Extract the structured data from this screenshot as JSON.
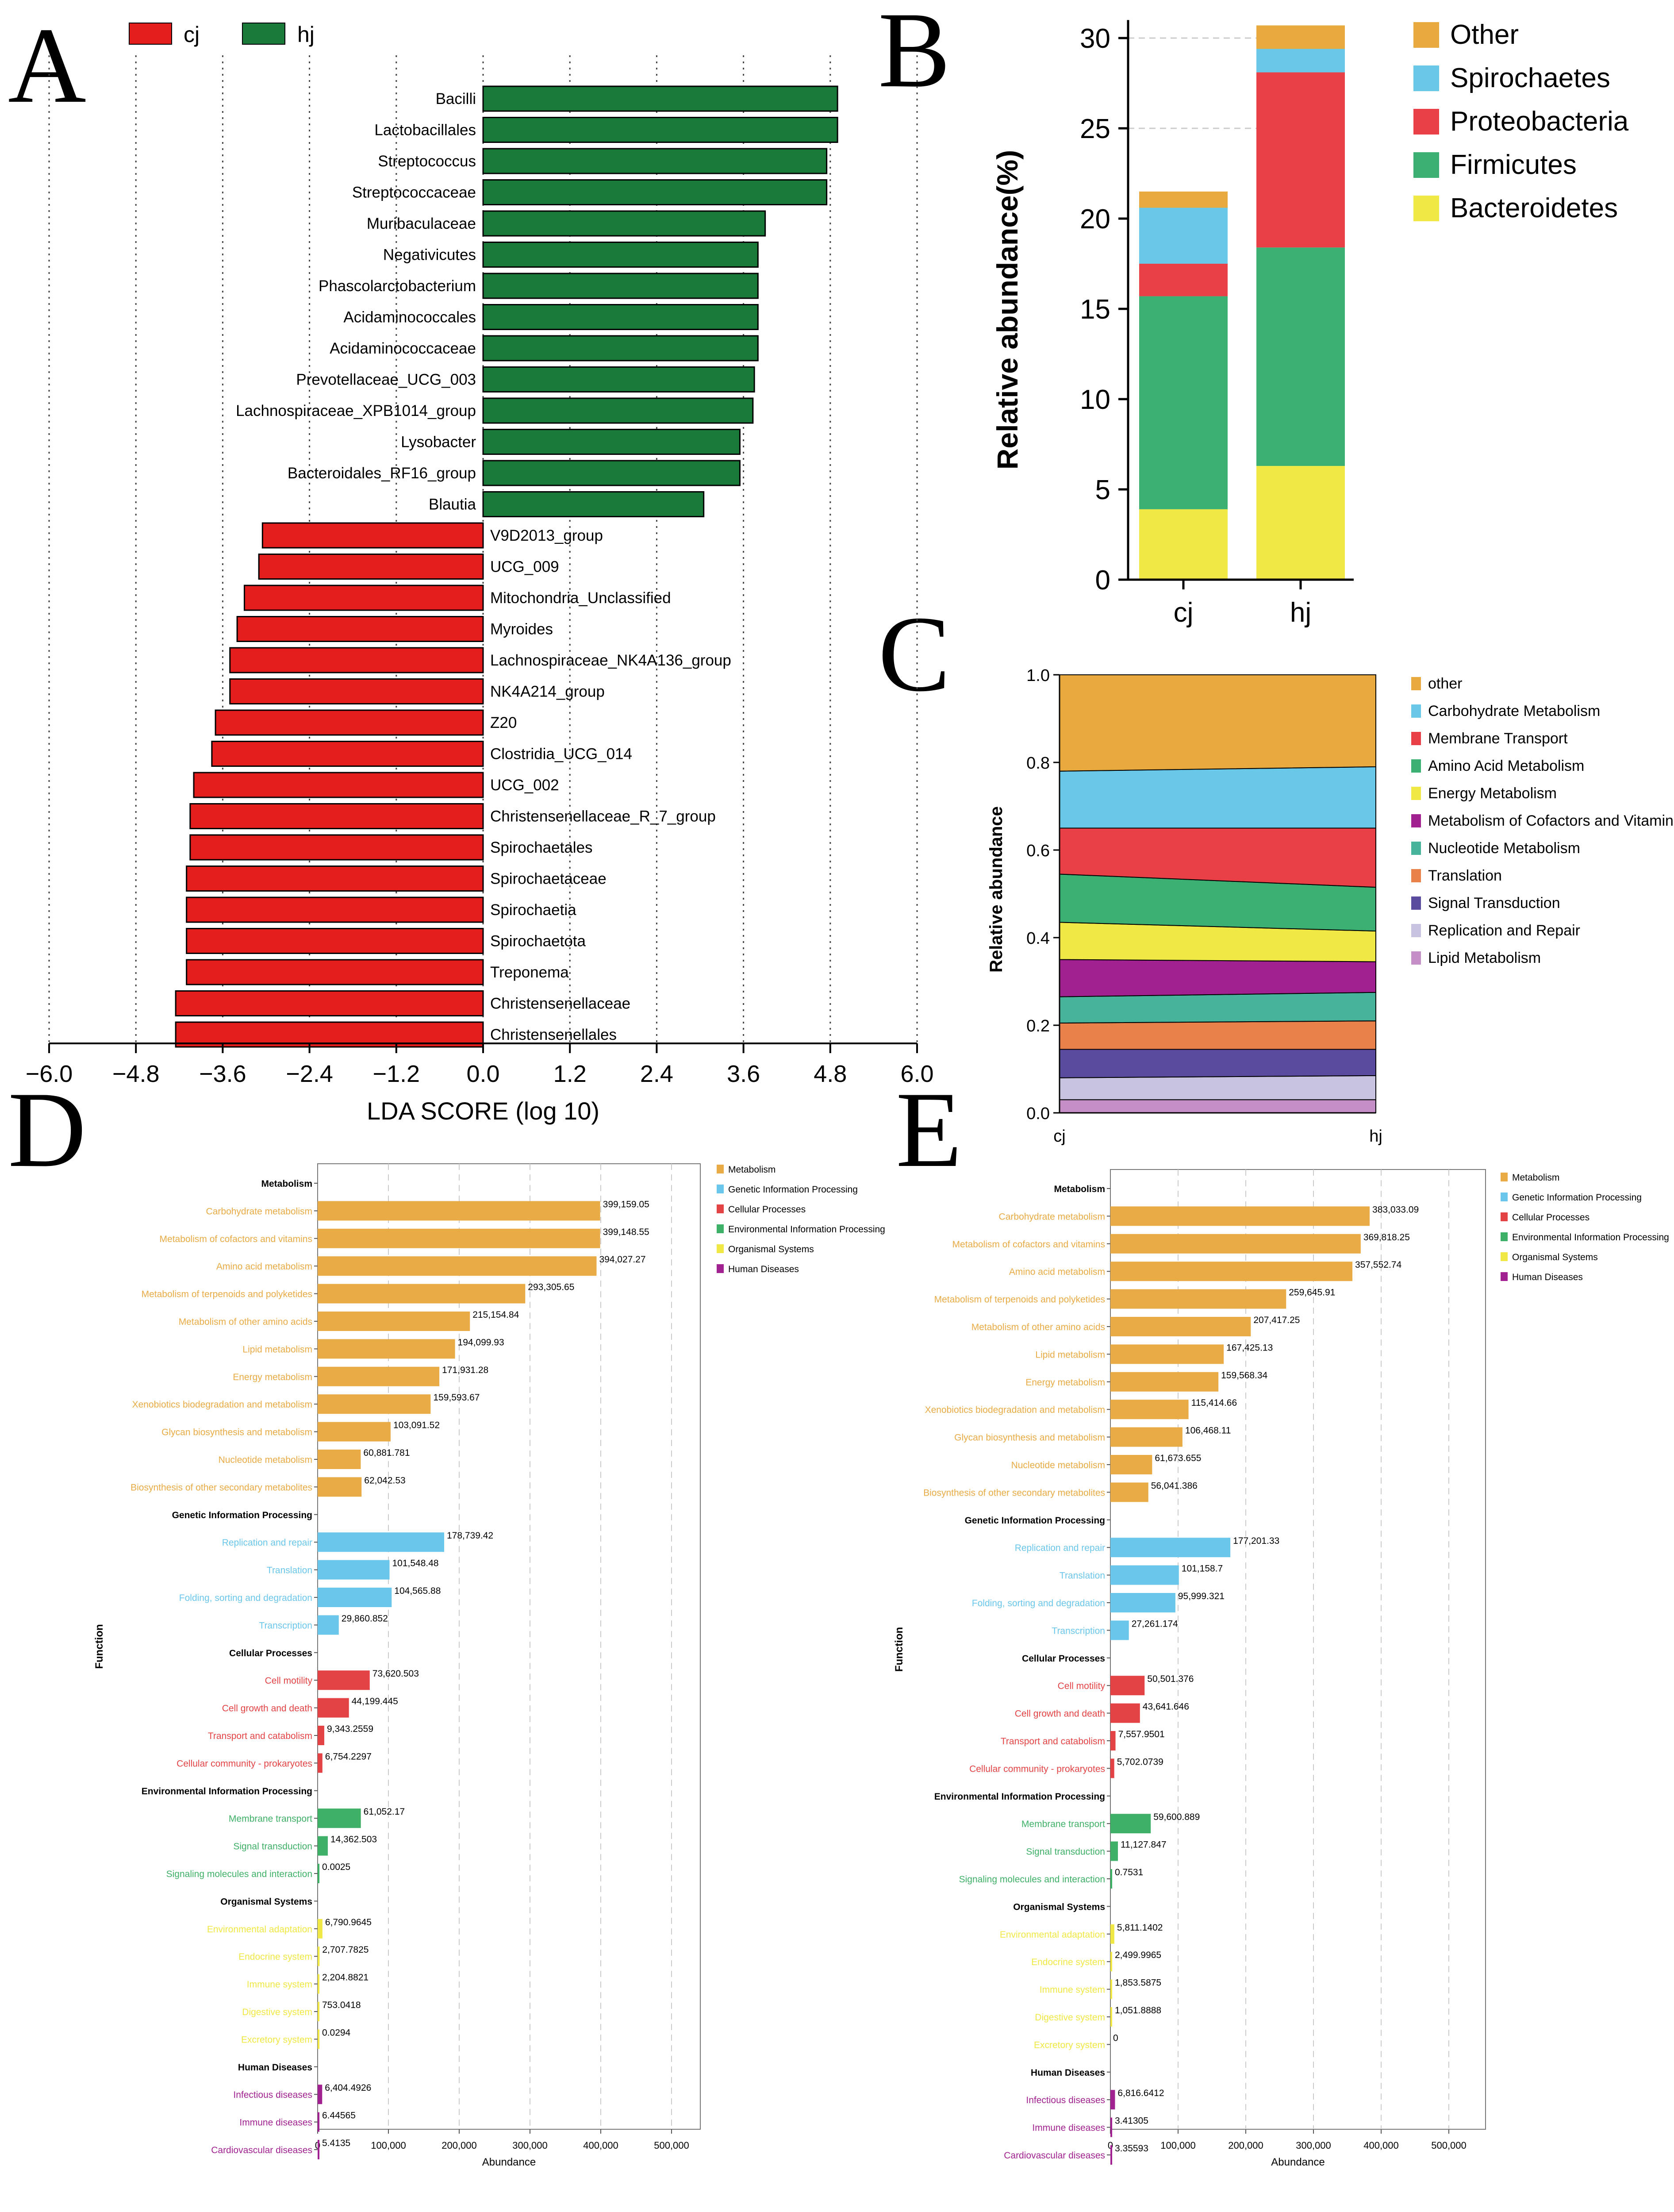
{
  "panel_letters": [
    "A",
    "B",
    "C",
    "D",
    "E"
  ],
  "colors": {
    "cj": "#e41d1d",
    "hj": "#1a7a3a",
    "Other": "#e8a93f",
    "Spirochaetes": "#69c8e8",
    "Proteobacteria": "#e84046",
    "Firmicutes": "#3bb072",
    "Bacteroidetes": "#f0e845",
    "Metabolism": "#e8ab45",
    "Genetic": "#6ac6ea",
    "Cellular": "#e34345",
    "Environmental": "#3fb067",
    "Organismal": "#f0e845",
    "Human": "#a0218f"
  },
  "chart_data": [
    {
      "panel": "A",
      "type": "bar",
      "orientation": "horizontal",
      "title": "",
      "xlabel": "LDA SCORE (log 10)",
      "ylabel": "",
      "xlim": [
        -6.0,
        6.0
      ],
      "xticks": [
        "−6.0",
        "−4.8",
        "−3.6",
        "−2.4",
        "−1.2",
        "0.0",
        "1.2",
        "2.4",
        "3.6",
        "4.8",
        "6.0"
      ],
      "legend": [
        {
          "name": "cj",
          "color": "#e41d1d"
        },
        {
          "name": "hj",
          "color": "#1a7a3a"
        }
      ],
      "categories": [
        "Bacilli",
        "Lactobacillales",
        "Streptococcus",
        "Streptococcaceae",
        "Muribaculaceae",
        "Negativicutes",
        "Phascolarctobacterium",
        "Acidaminococcales",
        "Acidaminococcaceae",
        "Prevotellaceae_UCG_003",
        "Lachnospiraceae_XPB1014_group",
        "Lysobacter",
        "Bacteroidales_RF16_group",
        "Blautia",
        "V9D2013_group",
        "UCG_009",
        "Mitochondria_Unclassified",
        "Myroides",
        "Lachnospiraceae_NK4A136_group",
        "NK4A214_group",
        "Z20",
        "Clostridia_UCG_014",
        "UCG_002",
        "Christensenellaceae_R_7_group",
        "Spirochaetales",
        "Spirochaetaceae",
        "Spirochaetia",
        "Spirochaetota",
        "Treponema",
        "Christensenellaceae",
        "Christensenellales"
      ],
      "values": [
        4.9,
        4.9,
        4.75,
        4.75,
        3.9,
        3.8,
        3.8,
        3.8,
        3.8,
        3.75,
        3.73,
        3.55,
        3.55,
        3.05,
        -3.05,
        -3.1,
        -3.3,
        -3.4,
        -3.5,
        -3.5,
        -3.7,
        -3.75,
        -4.0,
        -4.05,
        -4.05,
        -4.1,
        -4.1,
        -4.1,
        -4.1,
        -4.25,
        -4.25
      ]
    },
    {
      "panel": "B",
      "type": "bar",
      "stacked": true,
      "title": "",
      "xlabel": "",
      "ylabel": "Relative abundance(%)",
      "ylim": [
        0,
        30
      ],
      "yticks": [
        "0",
        "5",
        "10",
        "15",
        "20",
        "25",
        "30"
      ],
      "categories": [
        "cj",
        "hj"
      ],
      "legend": [
        "Other",
        "Spirochaetes",
        "Proteobacteria",
        "Firmicutes",
        "Bacteroidetes"
      ],
      "series": [
        {
          "name": "Bacteroidetes",
          "values": [
            3.9,
            6.3
          ]
        },
        {
          "name": "Firmicutes",
          "values": [
            11.8,
            12.1
          ]
        },
        {
          "name": "Proteobacteria",
          "values": [
            1.8,
            9.7
          ]
        },
        {
          "name": "Spirochaetes",
          "values": [
            3.1,
            1.3
          ]
        },
        {
          "name": "Other",
          "values": [
            0.9,
            1.3
          ]
        }
      ]
    },
    {
      "panel": "C",
      "type": "area",
      "stacked": true,
      "title": "",
      "xlabel": "",
      "ylabel": "Relative abundance",
      "ylim": [
        0,
        1.0
      ],
      "yticks": [
        "0.0",
        "0.2",
        "0.4",
        "0.6",
        "0.8",
        "1.0"
      ],
      "x": [
        "cj",
        "hj"
      ],
      "legend": [
        "other",
        "Carbohydrate Metabolism",
        "Membrane Transport",
        "Amino Acid Metabolism",
        "Energy Metabolism",
        "Metabolism of Cofactors and Vitamins",
        "Nucleotide Metabolism",
        "Translation",
        "Signal Transduction",
        "Replication and Repair",
        "Lipid Metabolism"
      ],
      "series": [
        {
          "name": "Lipid Metabolism",
          "values": [
            0.03,
            0.03
          ]
        },
        {
          "name": "Replication and Repair",
          "values": [
            0.05,
            0.055
          ]
        },
        {
          "name": "Signal Transduction",
          "values": [
            0.065,
            0.06
          ]
        },
        {
          "name": "Translation",
          "values": [
            0.06,
            0.065
          ]
        },
        {
          "name": "Nucleotide Metabolism",
          "values": [
            0.06,
            0.065
          ]
        },
        {
          "name": "Metabolism of Cofactors and Vitamins",
          "values": [
            0.085,
            0.07
          ]
        },
        {
          "name": "Energy Metabolism",
          "values": [
            0.085,
            0.07
          ]
        },
        {
          "name": "Amino Acid Metabolism",
          "values": [
            0.11,
            0.1
          ]
        },
        {
          "name": "Membrane Transport",
          "values": [
            0.105,
            0.135
          ]
        },
        {
          "name": "Carbohydrate Metabolism",
          "values": [
            0.13,
            0.14
          ]
        },
        {
          "name": "other",
          "values": [
            0.22,
            0.21
          ]
        }
      ]
    },
    {
      "panel": "D",
      "type": "bar",
      "orientation": "horizontal",
      "title": "",
      "xlabel": "Abundance",
      "ylabel": "Function",
      "xlim": [
        0,
        550000
      ],
      "xticks": [
        "0",
        "100,000",
        "200,000",
        "300,000",
        "400,000",
        "500,000"
      ],
      "legend": [
        "Metabolism",
        "Genetic Information Processing",
        "Cellular Processes",
        "Environmental Information Processing",
        "Organismal Systems",
        "Human Diseases"
      ],
      "groups": [
        {
          "name": "Metabolism",
          "items": [
            {
              "label": "Carbohydrate metabolism",
              "value": 399159.05,
              "text": "399,159.05"
            },
            {
              "label": "Metabolism of cofactors and vitamins",
              "value": 399148.55,
              "text": "399,148.55"
            },
            {
              "label": "Amino acid metabolism",
              "value": 394027.27,
              "text": "394,027.27"
            },
            {
              "label": "Metabolism of terpenoids and polyketides",
              "value": 293305.65,
              "text": "293,305.65"
            },
            {
              "label": "Metabolism of other amino acids",
              "value": 215154.84,
              "text": "215,154.84"
            },
            {
              "label": "Lipid metabolism",
              "value": 194099.93,
              "text": "194,099.93"
            },
            {
              "label": "Energy metabolism",
              "value": 171931.28,
              "text": "171,931.28"
            },
            {
              "label": "Xenobiotics biodegradation and metabolism",
              "value": 159593.67,
              "text": "159,593.67"
            },
            {
              "label": "Glycan biosynthesis and metabolism",
              "value": 103091.52,
              "text": "103,091.52"
            },
            {
              "label": "Nucleotide metabolism",
              "value": 60881.781,
              "text": "60,881.781"
            },
            {
              "label": "Biosynthesis of other secondary metabolites",
              "value": 62042.53,
              "text": "62,042.53"
            }
          ]
        },
        {
          "name": "Genetic Information Processing",
          "items": [
            {
              "label": "Replication and repair",
              "value": 178739.42,
              "text": "178,739.42"
            },
            {
              "label": "Translation",
              "value": 101548.48,
              "text": "101,548.48"
            },
            {
              "label": "Folding, sorting and degradation",
              "value": 104565.88,
              "text": "104,565.88"
            },
            {
              "label": "Transcription",
              "value": 29860.852,
              "text": "29,860.852"
            }
          ]
        },
        {
          "name": "Cellular Processes",
          "items": [
            {
              "label": "Cell motility",
              "value": 73620.503,
              "text": "73,620.503"
            },
            {
              "label": "Cell growth and death",
              "value": 44199.445,
              "text": "44,199.445"
            },
            {
              "label": "Transport and catabolism",
              "value": 9343.2559,
              "text": "9,343.2559"
            },
            {
              "label": "Cellular community - prokaryotes",
              "value": 6754.2297,
              "text": "6,754.2297"
            }
          ]
        },
        {
          "name": "Environmental Information Processing",
          "items": [
            {
              "label": "Membrane transport",
              "value": 61052.17,
              "text": "61,052.17"
            },
            {
              "label": "Signal transduction",
              "value": 14362.503,
              "text": "14,362.503"
            },
            {
              "label": "Signaling molecules and interaction",
              "value": 0.0025,
              "text": "0.0025"
            }
          ]
        },
        {
          "name": "Organismal Systems",
          "items": [
            {
              "label": "Environmental adaptation",
              "value": 6790.9645,
              "text": "6,790.9645"
            },
            {
              "label": "Endocrine system",
              "value": 2707.7825,
              "text": "2,707.7825"
            },
            {
              "label": "Immune system",
              "value": 2204.8821,
              "text": "2,204.8821"
            },
            {
              "label": "Digestive system",
              "value": 753.0418,
              "text": "753.0418"
            },
            {
              "label": "Excretory system",
              "value": 0.0294,
              "text": "0.0294"
            }
          ]
        },
        {
          "name": "Human Diseases",
          "items": [
            {
              "label": "Infectious diseases",
              "value": 6404.4926,
              "text": "6,404.4926"
            },
            {
              "label": "Immune diseases",
              "value": 6.44565,
              "text": "6.44565"
            },
            {
              "label": "Cardiovascular diseases",
              "value": 5.4135,
              "text": "5.4135"
            }
          ]
        }
      ]
    },
    {
      "panel": "E",
      "type": "bar",
      "orientation": "horizontal",
      "title": "",
      "xlabel": "Abundance",
      "ylabel": "Function",
      "xlim": [
        0,
        550000
      ],
      "xticks": [
        "0",
        "100,000",
        "200,000",
        "300,000",
        "400,000",
        "500,000"
      ],
      "legend": [
        "Metabolism",
        "Genetic Information Processing",
        "Cellular Processes",
        "Environmental Information Processing",
        "Organismal Systems",
        "Human Diseases"
      ],
      "groups": [
        {
          "name": "Metabolism",
          "items": [
            {
              "label": "Carbohydrate metabolism",
              "value": 383033.09,
              "text": "383,033.09"
            },
            {
              "label": "Metabolism of cofactors and vitamins",
              "value": 369818.25,
              "text": "369,818.25"
            },
            {
              "label": "Amino acid metabolism",
              "value": 357552.74,
              "text": "357,552.74"
            },
            {
              "label": "Metabolism of terpenoids and polyketides",
              "value": 259645.91,
              "text": "259,645.91"
            },
            {
              "label": "Metabolism of other amino acids",
              "value": 207417.25,
              "text": "207,417.25"
            },
            {
              "label": "Lipid metabolism",
              "value": 167425.13,
              "text": "167,425.13"
            },
            {
              "label": "Energy metabolism",
              "value": 159568.34,
              "text": "159,568.34"
            },
            {
              "label": "Xenobiotics biodegradation and metabolism",
              "value": 115414.66,
              "text": "115,414.66"
            },
            {
              "label": "Glycan biosynthesis and metabolism",
              "value": 106468.11,
              "text": "106,468.11"
            },
            {
              "label": "Nucleotide metabolism",
              "value": 61673.655,
              "text": "61,673.655"
            },
            {
              "label": "Biosynthesis of other secondary metabolites",
              "value": 56041.386,
              "text": "56,041.386"
            }
          ]
        },
        {
          "name": "Genetic Information Processing",
          "items": [
            {
              "label": "Replication and repair",
              "value": 177201.33,
              "text": "177,201.33"
            },
            {
              "label": "Translation",
              "value": 101158.7,
              "text": "101,158.7"
            },
            {
              "label": "Folding, sorting and degradation",
              "value": 95999.321,
              "text": "95,999.321"
            },
            {
              "label": "Transcription",
              "value": 27261.174,
              "text": "27,261.174"
            }
          ]
        },
        {
          "name": "Cellular Processes",
          "items": [
            {
              "label": "Cell motility",
              "value": 50501.376,
              "text": "50,501.376"
            },
            {
              "label": "Cell growth and death",
              "value": 43641.646,
              "text": "43,641.646"
            },
            {
              "label": "Transport and catabolism",
              "value": 7557.9501,
              "text": "7,557.9501"
            },
            {
              "label": "Cellular community - prokaryotes",
              "value": 5702.0739,
              "text": "5,702.0739"
            }
          ]
        },
        {
          "name": "Environmental Information Processing",
          "items": [
            {
              "label": "Membrane transport",
              "value": 59600.889,
              "text": "59,600.889"
            },
            {
              "label": "Signal transduction",
              "value": 11127.847,
              "text": "11,127.847"
            },
            {
              "label": "Signaling molecules and interaction",
              "value": 0.7531,
              "text": "0.7531"
            }
          ]
        },
        {
          "name": "Organismal Systems",
          "items": [
            {
              "label": "Environmental adaptation",
              "value": 5811.1402,
              "text": "5,811.1402"
            },
            {
              "label": "Endocrine system",
              "value": 2499.9965,
              "text": "2,499.9965"
            },
            {
              "label": "Immune system",
              "value": 1853.5875,
              "text": "1,853.5875"
            },
            {
              "label": "Digestive system",
              "value": 1051.8888,
              "text": "1,051.8888"
            },
            {
              "label": "Excretory system",
              "value": 0,
              "text": "0"
            }
          ]
        },
        {
          "name": "Human Diseases",
          "items": [
            {
              "label": "Infectious diseases",
              "value": 6816.6412,
              "text": "6,816.6412"
            },
            {
              "label": "Immune diseases",
              "value": 3.41305,
              "text": "3.41305"
            },
            {
              "label": "Cardiovascular diseases",
              "value": 3.35593,
              "text": "3.35593"
            }
          ]
        }
      ]
    }
  ]
}
